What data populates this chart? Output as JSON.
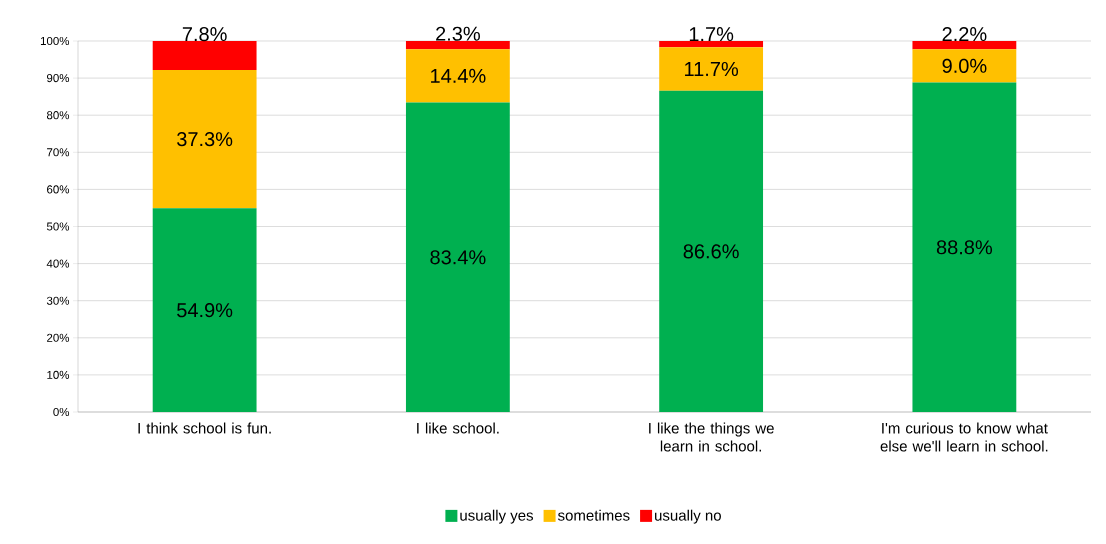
{
  "chart_data": {
    "type": "bar",
    "stacked": true,
    "categories": [
      "I think school is fun.",
      "I like school.",
      "I like the things we learn in school.",
      "I'm curious to know what else we'll learn in school."
    ],
    "series": [
      {
        "name": "usually yes",
        "color": "#00b050",
        "values": [
          54.9,
          83.4,
          86.6,
          88.8
        ],
        "value_labels": [
          "54.9%",
          "83.4%",
          "86.6%",
          "88.8%"
        ]
      },
      {
        "name": "sometimes",
        "color": "#ffc000",
        "values": [
          37.3,
          14.4,
          11.7,
          9.0
        ],
        "value_labels": [
          "37.3%",
          "14.4%",
          "11.7%",
          "9.0%"
        ]
      },
      {
        "name": "usually no",
        "color": "#ff0000",
        "values": [
          7.8,
          2.3,
          1.7,
          2.2
        ],
        "value_labels": [
          "7.8%",
          "2.3%",
          "1.7%",
          "2.2%"
        ]
      }
    ],
    "ylim": [
      0,
      100
    ],
    "yticks": [
      {
        "value": 0,
        "label": "0%"
      },
      {
        "value": 10,
        "label": "10%"
      },
      {
        "value": 20,
        "label": "20%"
      },
      {
        "value": 30,
        "label": "30%"
      },
      {
        "value": 40,
        "label": "40%"
      },
      {
        "value": 50,
        "label": "50%"
      },
      {
        "value": 60,
        "label": "60%"
      },
      {
        "value": 70,
        "label": "70%"
      },
      {
        "value": 80,
        "label": "80%"
      },
      {
        "value": 90,
        "label": "90%"
      },
      {
        "value": 100,
        "label": "100%"
      }
    ],
    "grid": "y",
    "legend": "bottom"
  }
}
